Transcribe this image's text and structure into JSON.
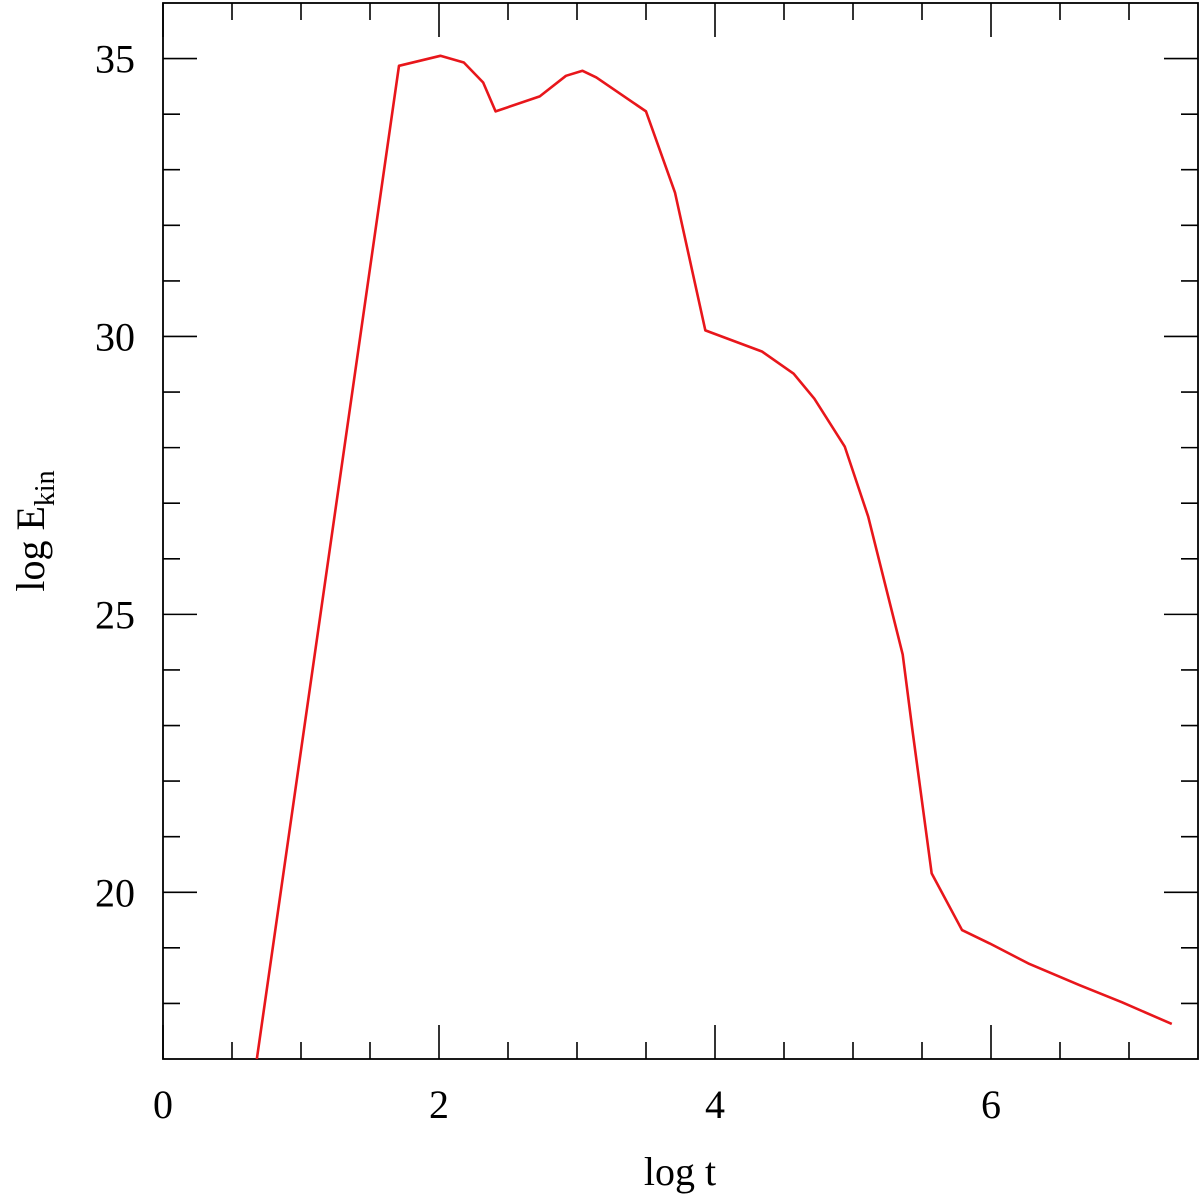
{
  "chart_data": {
    "type": "line",
    "x_label": "log t",
    "y_label": {
      "text": "log E",
      "subscript": "kin"
    },
    "xlim": [
      0,
      7.5
    ],
    "ylim": [
      17,
      36
    ],
    "xticks": [
      0,
      2,
      4,
      6
    ],
    "xticks_minor": [
      0.5,
      1,
      1.5,
      2.5,
      3,
      3.5,
      4.5,
      5,
      5.5,
      6.5,
      7
    ],
    "yticks": [
      20,
      25,
      30,
      35
    ],
    "yticks_minor": [
      18,
      19,
      21,
      22,
      23,
      24,
      26,
      27,
      28,
      29,
      31,
      32,
      33,
      34
    ],
    "series": [
      {
        "color": "#e8161b",
        "x": [
          0.68,
          1.71,
          2.01,
          2.18,
          2.32,
          2.41,
          2.73,
          2.92,
          3.04,
          3.14,
          3.5,
          3.71,
          3.93,
          4.34,
          4.57,
          4.72,
          4.94,
          5.11,
          5.36,
          5.43,
          5.57,
          5.79,
          5.99,
          6.27,
          6.64,
          6.95,
          7.31
        ],
        "values": [
          17.0,
          34.87,
          35.05,
          34.93,
          34.57,
          34.05,
          34.32,
          34.69,
          34.78,
          34.66,
          34.05,
          32.59,
          30.11,
          29.73,
          29.33,
          28.88,
          28.02,
          26.76,
          24.28,
          22.93,
          20.34,
          19.32,
          19.08,
          18.72,
          18.33,
          18.02,
          17.63
        ]
      }
    ]
  }
}
